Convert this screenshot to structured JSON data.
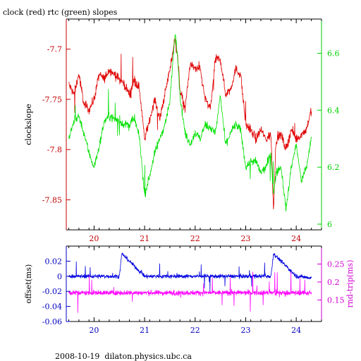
{
  "title": "clock (red) rtc (green) slopes",
  "footer": "2008-10-19  dilaton.physics.ubc.ca",
  "chart_data": [
    {
      "type": "line",
      "xlim": [
        19.45,
        24.5
      ],
      "x_ticks": [
        20,
        21,
        22,
        23,
        24
      ],
      "x_tick_labels": [
        "20",
        "21",
        "22",
        "23",
        "24"
      ],
      "ylabel": "clockslope",
      "ylim": [
        -7.88,
        -7.67
      ],
      "y_ticks": [
        -7.7,
        -7.75,
        -7.8,
        -7.85
      ],
      "y_tick_labels": [
        "-7.7",
        "-7.75",
        "-7.8",
        "-7.85"
      ],
      "y2lim": [
        5.98,
        6.72
      ],
      "y2_ticks": [
        6.0,
        6.2,
        6.4,
        6.6
      ],
      "y2_tick_labels": [
        "6",
        "6.2",
        "6.4",
        "6.6"
      ],
      "colors": {
        "clock": "#e00000",
        "rtc": "#00e000",
        "axis_left": "#c00000",
        "axis_right": "#00d000"
      },
      "series": [
        {
          "name": "clock",
          "axis": "left",
          "x": [
            19.5,
            19.6,
            19.7,
            19.8,
            19.9,
            20.0,
            20.1,
            20.2,
            20.3,
            20.4,
            20.5,
            20.6,
            20.7,
            20.8,
            20.9,
            21.0,
            21.1,
            21.2,
            21.3,
            21.4,
            21.5,
            21.55,
            21.6,
            21.65,
            21.7,
            21.8,
            21.9,
            22.0,
            22.1,
            22.2,
            22.3,
            22.4,
            22.5,
            22.6,
            22.7,
            22.8,
            22.9,
            23.0,
            23.1,
            23.2,
            23.3,
            23.4,
            23.5,
            23.55,
            23.6,
            23.7,
            23.8,
            23.9,
            24.0,
            24.1,
            24.2,
            24.3
          ],
          "y": [
            -7.735,
            -7.745,
            -7.725,
            -7.755,
            -7.76,
            -7.75,
            -7.725,
            -7.73,
            -7.72,
            -7.725,
            -7.73,
            -7.735,
            -7.745,
            -7.73,
            -7.74,
            -7.79,
            -7.77,
            -7.75,
            -7.77,
            -7.745,
            -7.72,
            -7.705,
            -7.69,
            -7.705,
            -7.74,
            -7.76,
            -7.715,
            -7.72,
            -7.72,
            -7.75,
            -7.76,
            -7.71,
            -7.71,
            -7.745,
            -7.74,
            -7.72,
            -7.725,
            -7.775,
            -7.78,
            -7.79,
            -7.78,
            -7.79,
            -7.785,
            -7.86,
            -7.79,
            -7.785,
            -7.8,
            -7.78,
            -7.79,
            -7.785,
            -7.78,
            -7.76
          ]
        },
        {
          "name": "rtc",
          "axis": "right",
          "x": [
            19.5,
            19.6,
            19.7,
            19.8,
            19.9,
            20.0,
            20.1,
            20.2,
            20.3,
            20.4,
            20.5,
            20.6,
            20.7,
            20.8,
            20.9,
            21.0,
            21.1,
            21.2,
            21.3,
            21.4,
            21.5,
            21.55,
            21.6,
            21.65,
            21.7,
            21.8,
            21.9,
            22.0,
            22.1,
            22.2,
            22.3,
            22.4,
            22.5,
            22.6,
            22.7,
            22.8,
            22.9,
            23.0,
            23.1,
            23.2,
            23.3,
            23.4,
            23.5,
            23.55,
            23.6,
            23.7,
            23.8,
            23.9,
            24.0,
            24.1,
            24.2,
            24.3
          ],
          "y": [
            6.3,
            6.36,
            6.38,
            6.32,
            6.25,
            6.2,
            6.27,
            6.36,
            6.38,
            6.37,
            6.36,
            6.35,
            6.35,
            6.37,
            6.3,
            6.1,
            6.17,
            6.25,
            6.3,
            6.35,
            6.43,
            6.55,
            6.67,
            6.6,
            6.45,
            6.32,
            6.28,
            6.32,
            6.3,
            6.35,
            6.34,
            6.32,
            6.45,
            6.28,
            6.32,
            6.35,
            6.33,
            6.2,
            6.22,
            6.22,
            6.18,
            6.2,
            6.25,
            6.1,
            6.18,
            6.2,
            6.05,
            6.2,
            6.28,
            6.15,
            6.2,
            6.3
          ]
        }
      ]
    },
    {
      "type": "line",
      "xlim": [
        19.45,
        24.5
      ],
      "x_ticks": [
        20,
        21,
        22,
        23,
        24
      ],
      "x_tick_labels": [
        "20",
        "21",
        "22",
        "23",
        "24"
      ],
      "ylabel": "offset(ms)",
      "ylim": [
        -0.06,
        0.04
      ],
      "y_ticks": [
        0.02,
        0,
        -0.02,
        -0.04,
        -0.06
      ],
      "y_tick_labels": [
        "0.02",
        "0",
        "-0.02",
        "-0.04",
        "-0.06"
      ],
      "y2label": "rnd-trip(ms)",
      "y2lim": [
        0.09,
        0.3
      ],
      "y2_ticks": [
        0.15,
        0.2,
        0.25
      ],
      "y2_tick_labels": [
        "0.15",
        "0.2",
        "0.25"
      ],
      "colors": {
        "offset": "#0000e0",
        "rnd_trip": "#ff00ff",
        "axis_left": "#0000c0",
        "axis_right": "#d000d0"
      },
      "series": [
        {
          "name": "offset",
          "axis": "left",
          "x": [
            19.5,
            20.0,
            20.5,
            20.55,
            21.0,
            21.5,
            22.0,
            22.5,
            23.0,
            23.5,
            23.55,
            24.0,
            24.3
          ],
          "y": [
            0.0,
            0.0,
            0.0,
            0.03,
            0.0,
            0.0,
            0.0,
            0.0,
            0.0,
            0.0,
            0.03,
            0.0,
            -0.002
          ]
        },
        {
          "name": "rnd-trip",
          "axis": "right",
          "x": [
            19.5,
            20.0,
            20.5,
            21.0,
            21.5,
            22.0,
            22.5,
            23.0,
            23.5,
            24.0,
            24.3
          ],
          "y": [
            0.17,
            0.17,
            0.17,
            0.17,
            0.17,
            0.17,
            0.17,
            0.17,
            0.17,
            0.17,
            0.17
          ]
        }
      ]
    }
  ]
}
